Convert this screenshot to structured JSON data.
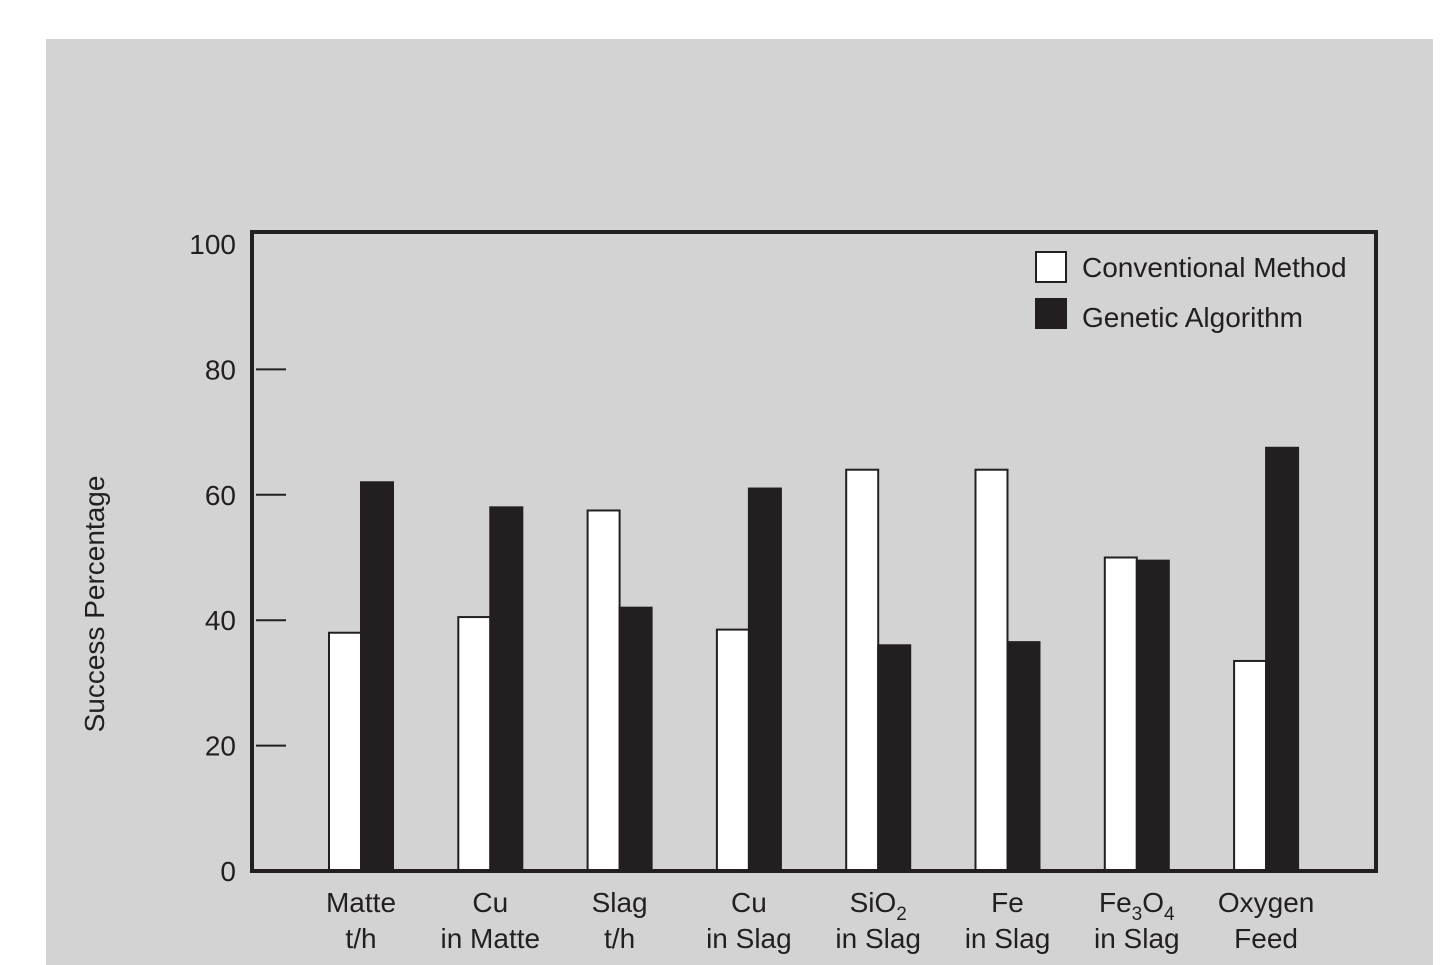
{
  "chart_data": {
    "type": "bar",
    "categories": [
      {
        "line1": "Matte",
        "line1_sub": "",
        "line1_tail": "",
        "line2": "t/h"
      },
      {
        "line1": "Cu",
        "line1_sub": "",
        "line1_tail": "",
        "line2": "in Matte"
      },
      {
        "line1": "Slag",
        "line1_sub": "",
        "line1_tail": "",
        "line2": "t/h"
      },
      {
        "line1": "Cu",
        "line1_sub": "",
        "line1_tail": "",
        "line2": "in Slag"
      },
      {
        "line1": "SiO",
        "line1_sub": "2",
        "line1_tail": "",
        "line2": "in Slag"
      },
      {
        "line1": "Fe",
        "line1_sub": "",
        "line1_tail": "",
        "line2": "in Slag"
      },
      {
        "line1": "Fe",
        "line1_sub": "3",
        "line1_tail": "O",
        "line1_sub2": "4",
        "line2": "in Slag"
      },
      {
        "line1": "Oxygen",
        "line1_sub": "",
        "line1_tail": "",
        "line2": "Feed"
      }
    ],
    "series": [
      {
        "name": "Conventional Method",
        "color": "#ffffff",
        "values": [
          38,
          40.5,
          57.5,
          38.5,
          64,
          64,
          50,
          33.5
        ]
      },
      {
        "name": "Genetic Algorithm",
        "color": "#231f20",
        "values": [
          62,
          58,
          42,
          61,
          36,
          36.5,
          49.5,
          67.5
        ]
      }
    ],
    "ylabel": "Success Percentage",
    "ylim": [
      0,
      100
    ],
    "yticks": [
      "0",
      "20",
      "40",
      "60",
      "80",
      "100"
    ],
    "ytick_values": [
      0,
      20,
      40,
      60,
      80,
      100
    ],
    "legend_position": "top-right",
    "grid": false
  }
}
